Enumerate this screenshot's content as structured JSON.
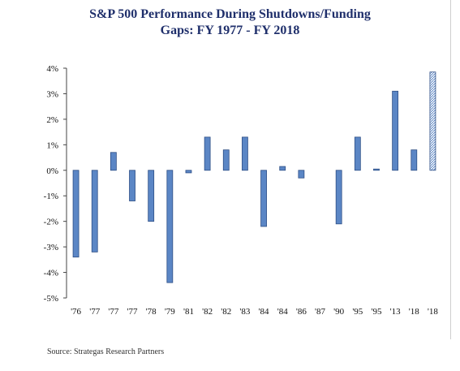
{
  "chart_data": {
    "type": "bar",
    "title_line1": "S&P 500 Performance During Shutdowns/Funding",
    "title_line2": "Gaps: FY 1977 - FY 2018",
    "source": "Source: Strategas Research Partners",
    "categories": [
      "'76",
      "'77",
      "'77",
      "'77",
      "'78",
      "'79",
      "'81",
      "'82",
      "'82",
      "'83",
      "'84",
      "'84",
      "'86",
      "'87",
      "'90",
      "'95",
      "'95",
      "'13",
      "'18",
      "'18"
    ],
    "values": [
      -3.4,
      -3.2,
      0.7,
      -1.2,
      -2.0,
      -4.4,
      -0.1,
      1.3,
      0.8,
      1.3,
      -2.2,
      0.15,
      -0.3,
      0.0,
      -2.1,
      1.3,
      0.05,
      3.1,
      0.8,
      3.85
    ],
    "highlight_last": true,
    "ylim": [
      -5,
      4
    ],
    "yticks": [
      4,
      3,
      2,
      1,
      0,
      -1,
      -2,
      -3,
      -4,
      -5
    ],
    "ytick_labels": [
      "4%",
      "3%",
      "2%",
      "1%",
      "0%",
      "-1%",
      "-2%",
      "-3%",
      "-4%",
      "-5%"
    ],
    "colors": {
      "bar": "#5b86c5",
      "bar_stroke": "#2e4f86",
      "title": "#1f2f6b"
    }
  }
}
